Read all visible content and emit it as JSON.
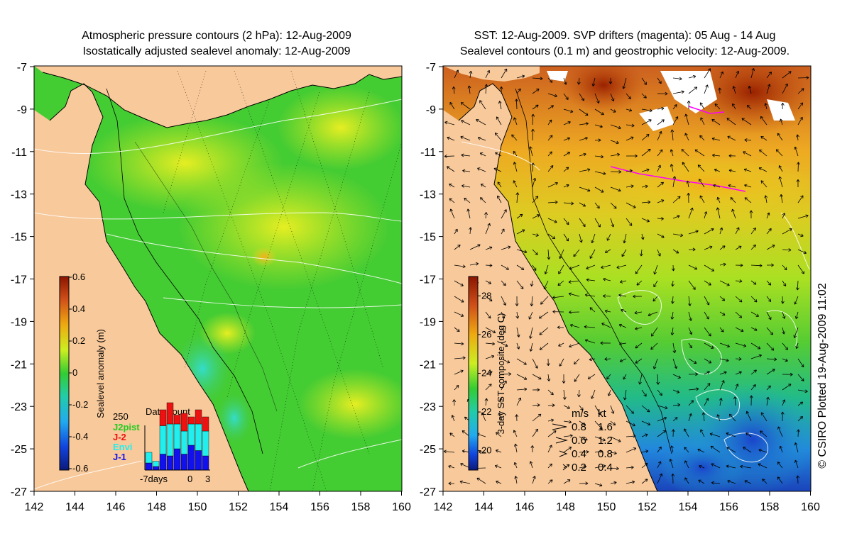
{
  "left_panel": {
    "title_line1": "Atmospheric pressure contours (2 hPa): 12-Aug-2009",
    "title_line2": "Isostatically adjusted sealevel anomaly: 12-Aug-2009",
    "colorbar": {
      "label": "Sealevel anomaly (m)",
      "ticks": [
        "0.6",
        "0.4",
        "0.2",
        "0",
        "-0.2",
        "-0.4",
        "-0.6"
      ]
    },
    "data_count": {
      "title": "Data count",
      "max_label": "250",
      "legend": [
        {
          "label": "J2pist",
          "color": "#22cc22"
        },
        {
          "label": "J-2",
          "color": "#ee1111"
        },
        {
          "label": "Envi",
          "color": "#22eeee"
        },
        {
          "label": "J-1",
          "color": "#1111ee"
        }
      ],
      "x_labels": [
        "-7days",
        "0",
        "3"
      ],
      "bars": [
        {
          "J-1": 20,
          "Envi": 30,
          "J-2": 0
        },
        {
          "J-1": 10,
          "Envi": 15,
          "J-2": 0
        },
        {
          "J-1": 45,
          "Envi": 80,
          "J-2": 45
        },
        {
          "J-1": 40,
          "Envi": 90,
          "J-2": 60
        },
        {
          "J-1": 60,
          "Envi": 70,
          "J-2": 25
        },
        {
          "J-1": 45,
          "Envi": 65,
          "J-2": 50
        },
        {
          "J-1": 70,
          "Envi": 60,
          "J-2": 20
        },
        {
          "J-1": 55,
          "Envi": 75,
          "J-2": 40
        },
        {
          "J-1": 40,
          "Envi": 70,
          "J-2": 40
        }
      ]
    }
  },
  "right_panel": {
    "title_line1": "SST: 12-Aug-2009. SVP drifters (magenta): 05 Aug - 14 Aug",
    "title_line2": "Sealevel contours (0.1 m) and geostrophic velocity: 12-Aug-2009.",
    "colorbar": {
      "label": "3-day SST composite (deg C)",
      "ticks": [
        "28",
        "26",
        "24",
        "22",
        "20"
      ]
    },
    "velocity_legend": {
      "header_ms": "m/s",
      "header_kt": "kt",
      "rows": [
        {
          "ms": "0.8",
          "kt": "1.6"
        },
        {
          "ms": "0.6",
          "kt": "1.2"
        },
        {
          "ms": "0.4",
          "kt": "0.8"
        },
        {
          "ms": "0.2",
          "kt": "0.4"
        }
      ]
    }
  },
  "axes": {
    "lat_ticks": [
      "-7",
      "-9",
      "-11",
      "-13",
      "-15",
      "-17",
      "-19",
      "-21",
      "-23",
      "-25",
      "-27"
    ],
    "lon_ticks": [
      "142",
      "144",
      "146",
      "148",
      "150",
      "152",
      "154",
      "156",
      "158",
      "160"
    ]
  },
  "credit": "© CSIRO Plotted 19-Aug-2009 11:02",
  "colors": {
    "land": "#f8c99a",
    "ocean_green": "#44cc33",
    "ocean_yellow": "#bbee22",
    "deep_blue": "#1133aa",
    "hot_red": "#aa2200"
  }
}
